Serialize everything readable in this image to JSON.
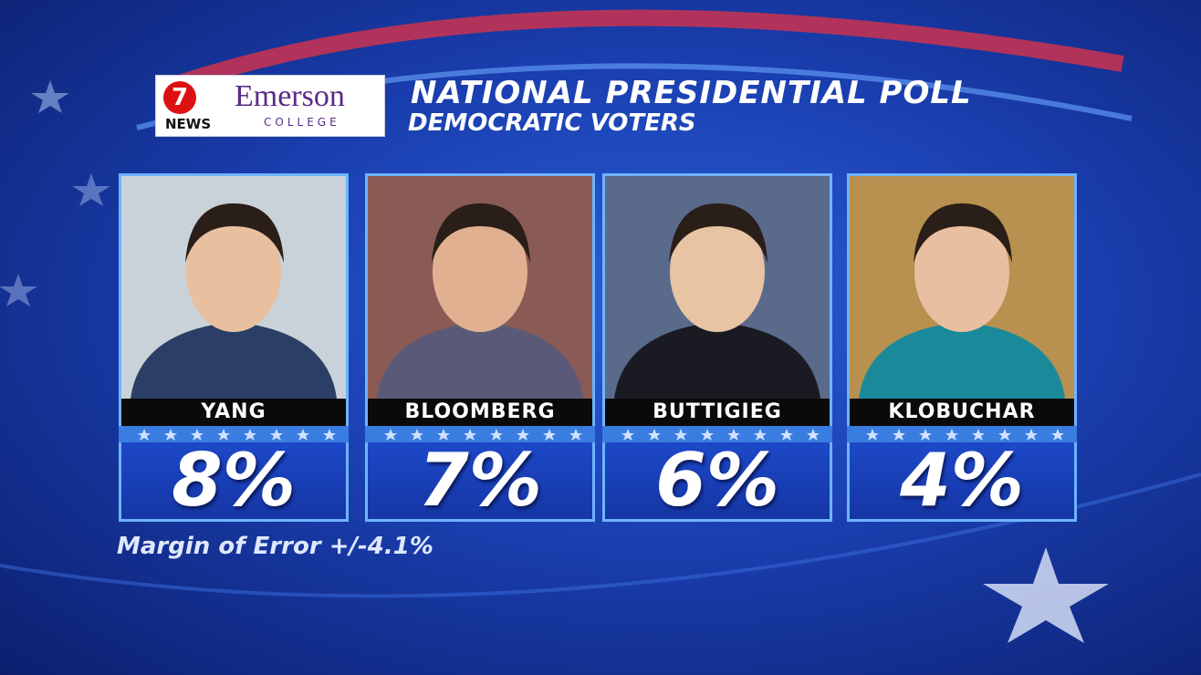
{
  "logo": {
    "station_number": "7",
    "station_name": "NEWS",
    "college_name": "Emerson",
    "college_subtitle": "COLLEGE"
  },
  "header": {
    "title": "NATIONAL PRESIDENTIAL POLL",
    "subtitle": "DEMOCRATIC VOTERS"
  },
  "candidates": [
    {
      "name": "YANG",
      "result": "8%"
    },
    {
      "name": "BLOOMBERG",
      "result": "7%"
    },
    {
      "name": "BUTTIGIEG",
      "result": "6%"
    },
    {
      "name": "KLOBUCHAR",
      "result": "4%"
    }
  ],
  "footer": {
    "margin_of_error": "Margin of Error +/-4.1%"
  }
}
